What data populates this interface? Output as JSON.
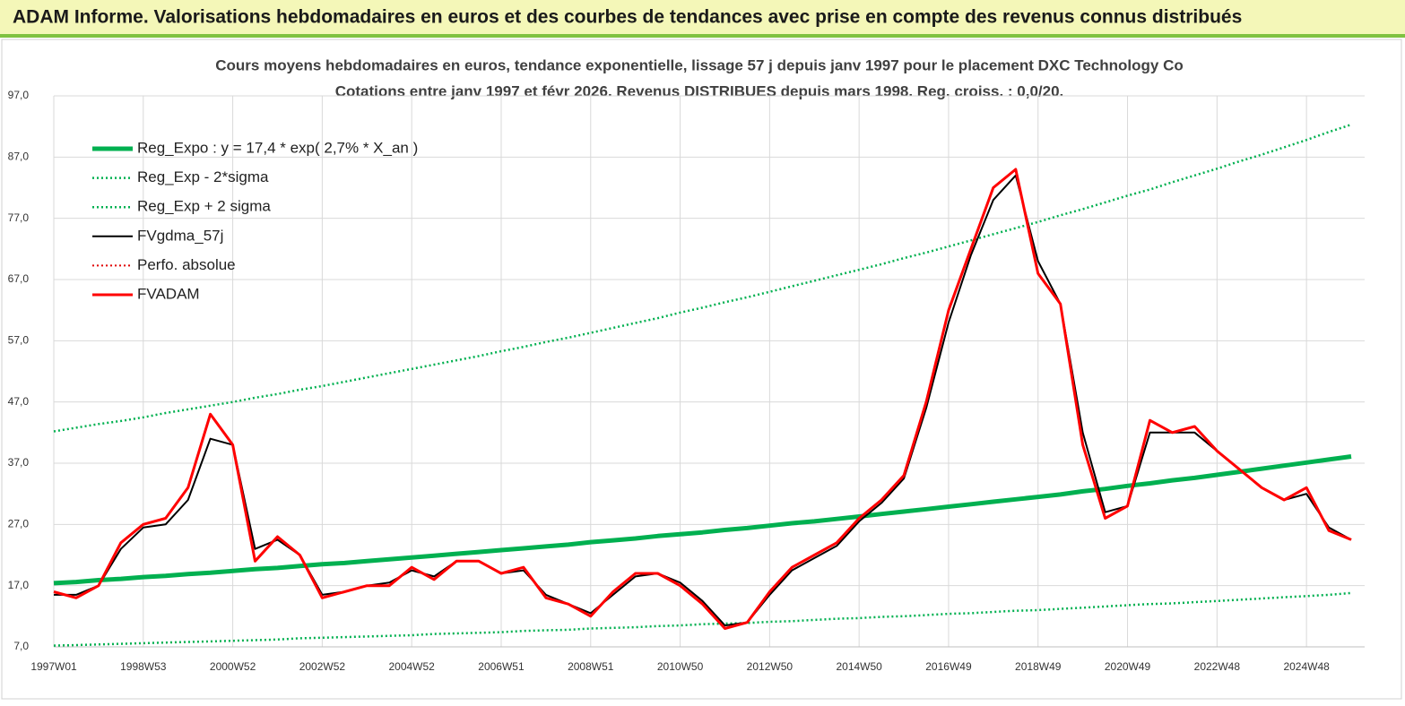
{
  "header": {
    "title": "ADAM Informe. Valorisations hebdomadaires en euros et des courbes de tendances avec prise en compte des revenus connus distribués"
  },
  "chart_data": {
    "type": "line",
    "title": "Cours moyens hebdomadaires en euros, tendance exponentielle, lissage 57 j depuis janv 1997 pour le placement DXC Technology Co",
    "subtitle": "Cotations entre janv 1997 et févr 2026. Revenus DISTRIBUES depuis mars 1998. Reg. croiss. : 0,0/20.",
    "categories": [
      "1997W01",
      null,
      null,
      null,
      "1998W53",
      null,
      null,
      null,
      "2000W52",
      null,
      null,
      null,
      "2002W52",
      null,
      null,
      null,
      "2004W52",
      null,
      null,
      null,
      "2006W51",
      null,
      null,
      null,
      "2008W51",
      null,
      null,
      null,
      "2010W50",
      null,
      null,
      null,
      "2012W50",
      null,
      null,
      null,
      "2014W50",
      null,
      null,
      null,
      "2016W49",
      null,
      null,
      null,
      "2018W49",
      null,
      null,
      null,
      "2020W49",
      null,
      null,
      null,
      "2022W48",
      null,
      null,
      null,
      "2024W48",
      null,
      null
    ],
    "ylim": [
      7,
      97
    ],
    "yticks": [
      {
        "value": 7,
        "label": "7,0"
      },
      {
        "value": 17,
        "label": "17,0"
      },
      {
        "value": 27,
        "label": "27,0"
      },
      {
        "value": 37,
        "label": "37,0"
      },
      {
        "value": 47,
        "label": "47,0"
      },
      {
        "value": 57,
        "label": "57,0"
      },
      {
        "value": 67,
        "label": "67,0"
      },
      {
        "value": 77,
        "label": "77,0"
      },
      {
        "value": 87,
        "label": "87,0"
      },
      {
        "value": 97,
        "label": "97,0"
      }
    ],
    "grid": true,
    "legend": "upper-left",
    "series": [
      {
        "name": "Reg_Expo : y = 17,4 * exp( 2,7% *  X_an )",
        "color": "#00b050",
        "style": "solid",
        "width": 5,
        "values": [
          17.4,
          17.6,
          17.9,
          18.1,
          18.4,
          18.6,
          18.9,
          19.1,
          19.4,
          19.7,
          19.9,
          20.2,
          20.5,
          20.7,
          21.0,
          21.3,
          21.6,
          21.9,
          22.2,
          22.5,
          22.8,
          23.1,
          23.4,
          23.7,
          24.1,
          24.4,
          24.7,
          25.1,
          25.4,
          25.7,
          26.1,
          26.4,
          26.8,
          27.2,
          27.5,
          27.9,
          28.3,
          28.7,
          29.1,
          29.5,
          29.9,
          30.3,
          30.7,
          31.1,
          31.5,
          31.9,
          32.4,
          32.8,
          33.3,
          33.7,
          34.2,
          34.6,
          35.1,
          35.6,
          36.1,
          36.6,
          37.1,
          37.6,
          38.1
        ]
      },
      {
        "name": "Reg_Exp - 2*sigma",
        "color": "#00b050",
        "style": "dotted",
        "width": 2.5,
        "values": [
          7.2,
          7.3,
          7.4,
          7.5,
          7.6,
          7.7,
          7.8,
          7.9,
          8.0,
          8.1,
          8.2,
          8.4,
          8.5,
          8.6,
          8.7,
          8.8,
          8.9,
          9.1,
          9.2,
          9.3,
          9.4,
          9.6,
          9.7,
          9.8,
          10.0,
          10.1,
          10.2,
          10.4,
          10.5,
          10.7,
          10.8,
          10.9,
          11.1,
          11.2,
          11.4,
          11.6,
          11.7,
          11.9,
          12.0,
          12.2,
          12.4,
          12.5,
          12.7,
          12.9,
          13.0,
          13.2,
          13.4,
          13.6,
          13.8,
          14.0,
          14.1,
          14.3,
          14.5,
          14.7,
          14.9,
          15.1,
          15.3,
          15.5,
          15.8
        ]
      },
      {
        "name": "Reg_Exp + 2 sigma",
        "color": "#00b050",
        "style": "dotted",
        "width": 2.5,
        "values": [
          42.2,
          42.8,
          43.4,
          43.9,
          44.5,
          45.2,
          45.8,
          46.4,
          47.0,
          47.7,
          48.3,
          49.0,
          49.6,
          50.3,
          51.0,
          51.7,
          52.4,
          53.1,
          53.8,
          54.5,
          55.3,
          56.0,
          56.8,
          57.5,
          58.3,
          59.1,
          59.9,
          60.7,
          61.6,
          62.4,
          63.3,
          64.1,
          65.0,
          65.9,
          66.8,
          67.7,
          68.6,
          69.5,
          70.5,
          71.4,
          72.4,
          73.4,
          74.4,
          75.4,
          76.4,
          77.5,
          78.5,
          79.6,
          80.7,
          81.7,
          82.9,
          84.0,
          85.1,
          86.3,
          87.4,
          88.6,
          89.8,
          91.1,
          92.3
        ]
      },
      {
        "name": "FVgdma_57j",
        "color": "#000000",
        "style": "solid",
        "width": 2,
        "values": [
          15.5,
          15.5,
          17,
          23,
          26.5,
          27,
          31,
          41,
          40,
          23,
          24.5,
          22,
          15.5,
          16,
          17,
          17.5,
          19.5,
          18.5,
          21,
          21,
          19,
          19.5,
          15.5,
          14,
          12.5,
          15.5,
          18.5,
          19,
          17.5,
          14.5,
          10.5,
          11,
          15.5,
          19.5,
          21.5,
          23.5,
          27.5,
          30.5,
          34.5,
          46,
          60,
          71,
          80,
          84,
          70,
          63,
          42,
          29,
          30,
          42,
          42,
          42,
          39,
          36,
          33,
          31,
          32,
          26.5,
          24.5
        ]
      },
      {
        "name": "Perfo. absolue",
        "color": "#e00000",
        "style": "dotted",
        "width": 2,
        "values": [
          null,
          null,
          null,
          null,
          null,
          null,
          null,
          null,
          null,
          null,
          null,
          null,
          null,
          null,
          null,
          null,
          null,
          null,
          null,
          null,
          null,
          null,
          null,
          null,
          null,
          null,
          null,
          null,
          null,
          null,
          null,
          null,
          null,
          null,
          null,
          null,
          null,
          null,
          null,
          null,
          null,
          null,
          null,
          null,
          null,
          null,
          null,
          null,
          null,
          null,
          null,
          null,
          null,
          null,
          null,
          null,
          null,
          null,
          null
        ]
      },
      {
        "name": "FVADAM",
        "color": "#ff0000",
        "style": "solid",
        "width": 3,
        "values": [
          16,
          15,
          17,
          24,
          27,
          28,
          33,
          45,
          40,
          21,
          25,
          22,
          15,
          16,
          17,
          17,
          20,
          18,
          21,
          21,
          19,
          20,
          15,
          14,
          12,
          16,
          19,
          19,
          17,
          14,
          10,
          11,
          16,
          20,
          22,
          24,
          28,
          31,
          35,
          47,
          62,
          72,
          82,
          85,
          68,
          63,
          40,
          28,
          30,
          44,
          42,
          43,
          39,
          36,
          33,
          31,
          33,
          26,
          24.5
        ]
      }
    ]
  }
}
